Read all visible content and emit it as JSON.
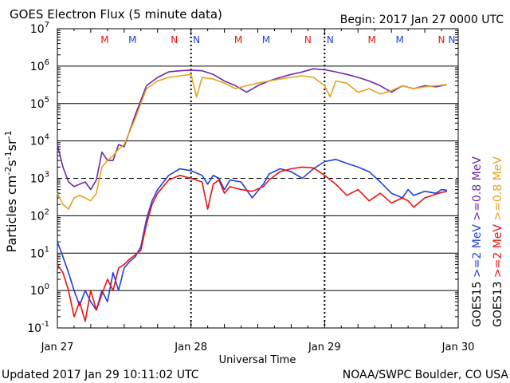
{
  "header": {
    "title": "GOES Electron Flux (5 minute data)",
    "begin": "Begin: 2017 Jan 27 0000 UTC"
  },
  "footer": {
    "updated": "Updated 2017 Jan 29 10:11:02 UTC",
    "credit": "NOAA/SWPC Boulder, CO USA"
  },
  "colors": {
    "goes15_ge2": "#1f3fe0",
    "goes13_ge2": "#ee1111",
    "goes15_ge08": "#6a2aa8",
    "goes13_ge08": "#e8a21a",
    "frame": "#000000"
  },
  "chart_data": {
    "type": "line",
    "log_y": true,
    "xlabel": "Universal Time",
    "ylabel": "Particles cm-2s-1sr-1",
    "ylim": [
      0.1,
      10000000
    ],
    "xlim": [
      "2017-01-27T00:00",
      "2017-01-30T00:00"
    ],
    "x_ticks": [
      "Jan 27",
      "Jan 28",
      "Jan 29",
      "Jan 30"
    ],
    "y_tick_exponents": [
      "-1",
      "0",
      "1",
      "2",
      "3",
      "4",
      "5",
      "6",
      "7"
    ],
    "threshold": 1000,
    "markers": [
      {
        "label": "M",
        "color": "red",
        "time": "2017-01-27T08:30"
      },
      {
        "label": "M",
        "color": "blue",
        "time": "2017-01-27T13:30"
      },
      {
        "label": "N",
        "color": "red",
        "time": "2017-01-27T21:00"
      },
      {
        "label": "N",
        "color": "blue",
        "time": "2017-01-28T01:00"
      },
      {
        "label": "M",
        "color": "red",
        "time": "2017-01-28T08:30"
      },
      {
        "label": "M",
        "color": "blue",
        "time": "2017-01-28T13:30"
      },
      {
        "label": "N",
        "color": "red",
        "time": "2017-01-28T21:00"
      },
      {
        "label": "N",
        "color": "blue",
        "time": "2017-01-29T01:00"
      },
      {
        "label": "M",
        "color": "red",
        "time": "2017-01-29T08:30"
      },
      {
        "label": "M",
        "color": "blue",
        "time": "2017-01-29T13:30"
      },
      {
        "label": "N",
        "color": "red",
        "time": "2017-01-29T21:00"
      },
      {
        "label": "N",
        "color": "blue",
        "time": "2017-01-30T01:00"
      }
    ],
    "legend": [
      {
        "sat": "GOES15",
        "label": ">=2",
        "unit": "MeV",
        "color": "blue"
      },
      {
        "sat": "GOES13",
        "label": ">=2",
        "unit": "MeV",
        "color": "red"
      },
      {
        "sat": "GOES15",
        "label": ">=0.8",
        "unit": "MeV",
        "color": "purple"
      },
      {
        "sat": "GOES13",
        "label": ">=0.8",
        "unit": "MeV",
        "color": "orange"
      }
    ],
    "series": [
      {
        "key": "goes15_ge2",
        "x_hours": [
          0,
          1,
          2,
          3,
          4,
          5,
          6,
          7,
          8,
          9,
          10,
          11,
          12,
          13,
          14,
          15,
          16,
          17,
          18,
          20,
          22,
          24,
          26,
          27,
          28,
          29,
          30,
          31,
          33,
          35,
          37,
          38,
          40,
          42,
          44,
          46,
          48,
          50,
          52,
          54,
          56,
          58,
          60,
          62,
          63,
          64,
          66,
          68,
          69,
          70
        ],
        "values": [
          20,
          8,
          3,
          1,
          0.4,
          1,
          0.5,
          0.3,
          1,
          0.5,
          3,
          1,
          4,
          6,
          8,
          15,
          80,
          250,
          500,
          1200,
          1800,
          1600,
          1200,
          700,
          1200,
          1000,
          500,
          900,
          800,
          300,
          700,
          1300,
          1800,
          1500,
          1000,
          1800,
          2800,
          3200,
          2500,
          2000,
          1500,
          800,
          400,
          300,
          500,
          350,
          450,
          400,
          500,
          480
        ]
      },
      {
        "key": "goes13_ge2",
        "x_hours": [
          0,
          1,
          2,
          3,
          4,
          5,
          6,
          7,
          8,
          9,
          10,
          11,
          12,
          13,
          14,
          15,
          16,
          17,
          18,
          20,
          22,
          24,
          26,
          27,
          28,
          29,
          30,
          31,
          33,
          35,
          37,
          38,
          40,
          42,
          44,
          46,
          48,
          50,
          52,
          54,
          56,
          58,
          60,
          62,
          63,
          64,
          66,
          68,
          69,
          70
        ],
        "values": [
          5,
          3,
          1,
          0.2,
          0.5,
          0.15,
          1,
          0.3,
          0.8,
          2,
          1,
          4,
          5,
          7,
          9,
          12,
          60,
          200,
          400,
          900,
          1200,
          1000,
          800,
          150,
          700,
          900,
          400,
          600,
          500,
          450,
          600,
          900,
          1500,
          1800,
          2000,
          1900,
          1200,
          700,
          350,
          500,
          250,
          400,
          220,
          300,
          250,
          170,
          300,
          380,
          420,
          450
        ]
      },
      {
        "key": "goes15_ge08",
        "x_hours": [
          0,
          1,
          2,
          3,
          4,
          5,
          6,
          7,
          8,
          9,
          10,
          11,
          12,
          14,
          16,
          18,
          20,
          22,
          24,
          26,
          28,
          30,
          32,
          34,
          36,
          38,
          40,
          42,
          44,
          46,
          48,
          50,
          52,
          54,
          56,
          58,
          60,
          62,
          64,
          66,
          68,
          70
        ],
        "values": [
          8000,
          2000,
          800,
          600,
          700,
          800,
          500,
          900,
          5000,
          3000,
          3000,
          8000,
          7000,
          50000,
          300000,
          500000,
          700000,
          750000,
          780000,
          750000,
          600000,
          400000,
          300000,
          200000,
          300000,
          400000,
          500000,
          600000,
          700000,
          850000,
          800000,
          700000,
          600000,
          500000,
          400000,
          300000,
          200000,
          300000,
          250000,
          300000,
          280000,
          320000
        ]
      },
      {
        "key": "goes13_ge08",
        "x_hours": [
          0,
          1,
          2,
          3,
          4,
          5,
          6,
          7,
          8,
          9,
          10,
          11,
          12,
          14,
          16,
          18,
          20,
          22,
          24,
          25,
          26,
          28,
          30,
          32,
          34,
          36,
          38,
          40,
          42,
          44,
          46,
          48,
          49,
          50,
          52,
          54,
          56,
          58,
          60,
          62,
          64,
          66,
          68,
          70
        ],
        "values": [
          400,
          200,
          150,
          300,
          350,
          300,
          250,
          400,
          2000,
          3000,
          4000,
          6000,
          8000,
          40000,
          250000,
          400000,
          500000,
          550000,
          600000,
          150000,
          500000,
          450000,
          350000,
          250000,
          300000,
          350000,
          400000,
          450000,
          500000,
          550000,
          500000,
          300000,
          150000,
          400000,
          350000,
          200000,
          250000,
          180000,
          220000,
          300000,
          250000,
          280000,
          300000,
          320000
        ]
      }
    ]
  }
}
